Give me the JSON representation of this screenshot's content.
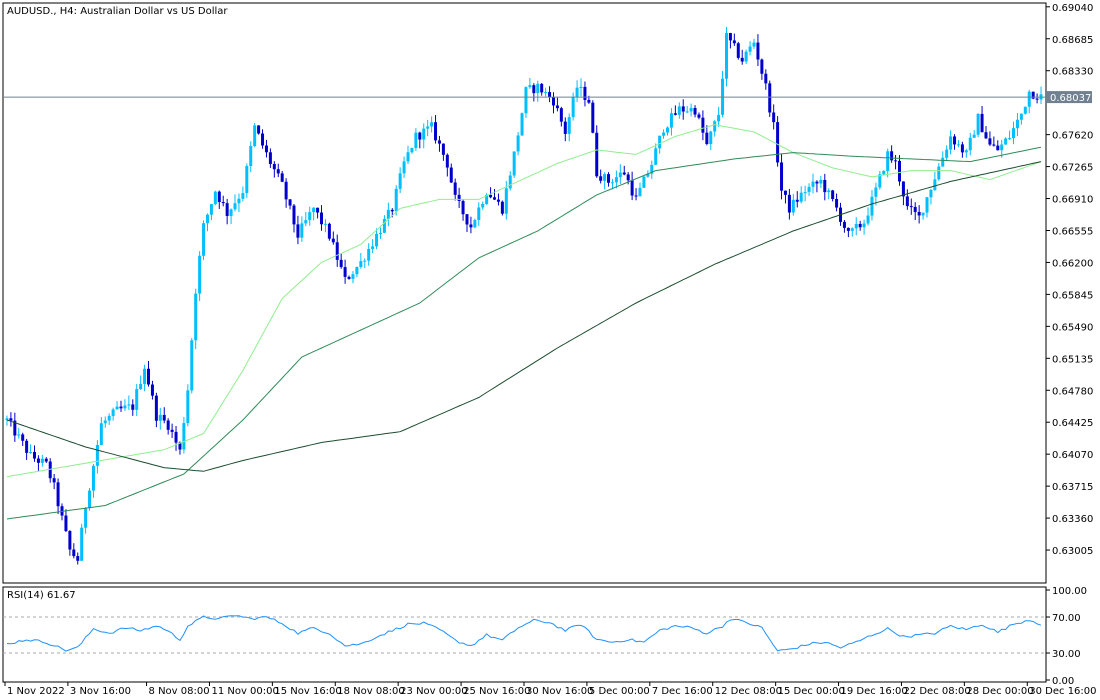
{
  "chart_data": [
    {
      "type": "candlestick",
      "title": "AUDUSD., H4:  Australian Dollar vs US Dollar",
      "current_price_label": "0.68037",
      "current_price": 0.68037,
      "y_ticks": [
        "0.69040",
        "0.68685",
        "0.68330",
        "0.67975",
        "0.67620",
        "0.67265",
        "0.66910",
        "0.66555",
        "0.66200",
        "0.65845",
        "0.65490",
        "0.65135",
        "0.64780",
        "0.64425",
        "0.64070",
        "0.63715",
        "0.63360",
        "0.63005"
      ],
      "ylim": [
        0.6265,
        0.6906
      ],
      "x_ticks": [
        {
          "label": "1 Nov 2022",
          "index": 0
        },
        {
          "label": "3 Nov 16:00",
          "index": 16
        },
        {
          "label": "8 Nov 08:00",
          "index": 36
        },
        {
          "label": "11 Nov 00:00",
          "index": 52
        },
        {
          "label": "15 Nov 16:00",
          "index": 68
        },
        {
          "label": "18 Nov 08:00",
          "index": 84
        },
        {
          "label": "23 Nov 00:00",
          "index": 100
        },
        {
          "label": "25 Nov 16:00",
          "index": 116
        },
        {
          "label": "30 Nov 16:00",
          "index": 132
        },
        {
          "label": "5 Dec 00:00",
          "index": 148
        },
        {
          "label": "7 Dec 16:00",
          "index": 164
        },
        {
          "label": "12 Dec 08:00",
          "index": 180
        },
        {
          "label": "15 Dec 00:00",
          "index": 196
        },
        {
          "label": "19 Dec 16:00",
          "index": 212
        },
        {
          "label": "22 Dec 08:00",
          "index": 228
        },
        {
          "label": "28 Dec 00:00",
          "index": 244
        },
        {
          "label": "30 Dec 16:00",
          "index": 260
        }
      ],
      "bar_count": 264,
      "close_anchors": [
        [
          0,
          0.6445
        ],
        [
          6,
          0.6405
        ],
        [
          10,
          0.6395
        ],
        [
          12,
          0.637
        ],
        [
          16,
          0.63
        ],
        [
          18,
          0.629
        ],
        [
          20,
          0.635
        ],
        [
          24,
          0.644
        ],
        [
          28,
          0.6455
        ],
        [
          32,
          0.646
        ],
        [
          35,
          0.6505
        ],
        [
          38,
          0.645
        ],
        [
          41,
          0.644
        ],
        [
          44,
          0.641
        ],
        [
          46,
          0.648
        ],
        [
          48,
          0.659
        ],
        [
          50,
          0.666
        ],
        [
          53,
          0.67
        ],
        [
          56,
          0.6675
        ],
        [
          60,
          0.67
        ],
        [
          63,
          0.677
        ],
        [
          66,
          0.674
        ],
        [
          70,
          0.6705
        ],
        [
          74,
          0.665
        ],
        [
          78,
          0.668
        ],
        [
          82,
          0.665
        ],
        [
          86,
          0.66
        ],
        [
          90,
          0.662
        ],
        [
          94,
          0.665
        ],
        [
          98,
          0.668
        ],
        [
          101,
          0.673
        ],
        [
          104,
          0.676
        ],
        [
          108,
          0.677
        ],
        [
          112,
          0.673
        ],
        [
          114,
          0.669
        ],
        [
          118,
          0.666
        ],
        [
          122,
          0.67
        ],
        [
          126,
          0.668
        ],
        [
          129,
          0.674
        ],
        [
          132,
          0.681
        ],
        [
          135,
          0.6815
        ],
        [
          139,
          0.68
        ],
        [
          142,
          0.6765
        ],
        [
          145,
          0.6815
        ],
        [
          148,
          0.68
        ],
        [
          150,
          0.672
        ],
        [
          153,
          0.671
        ],
        [
          157,
          0.672
        ],
        [
          160,
          0.669
        ],
        [
          164,
          0.673
        ],
        [
          167,
          0.677
        ],
        [
          171,
          0.679
        ],
        [
          175,
          0.679
        ],
        [
          178,
          0.675
        ],
        [
          181,
          0.6785
        ],
        [
          183,
          0.687
        ],
        [
          187,
          0.6845
        ],
        [
          190,
          0.6865
        ],
        [
          193,
          0.6815
        ],
        [
          195,
          0.677
        ],
        [
          197,
          0.67
        ],
        [
          199,
          0.668
        ],
        [
          203,
          0.67
        ],
        [
          207,
          0.671
        ],
        [
          211,
          0.668
        ],
        [
          214,
          0.665
        ],
        [
          218,
          0.6665
        ],
        [
          221,
          0.67
        ],
        [
          224,
          0.674
        ],
        [
          226,
          0.673
        ],
        [
          229,
          0.668
        ],
        [
          232,
          0.667
        ],
        [
          236,
          0.6715
        ],
        [
          240,
          0.676
        ],
        [
          244,
          0.674
        ],
        [
          247,
          0.678
        ],
        [
          250,
          0.675
        ],
        [
          252,
          0.6745
        ],
        [
          255,
          0.676
        ],
        [
          258,
          0.6785
        ],
        [
          260,
          0.681
        ],
        [
          263,
          0.6804
        ]
      ],
      "moving_averages": [
        {
          "anchors": [
            [
              0,
              0.6382
            ],
            [
              40,
              0.6412
            ],
            [
              50,
              0.643
            ],
            [
              60,
              0.65
            ],
            [
              70,
              0.658
            ],
            [
              80,
              0.662
            ],
            [
              90,
              0.664
            ],
            [
              100,
              0.668
            ],
            [
              110,
              0.669
            ],
            [
              120,
              0.669
            ],
            [
              130,
              0.671
            ],
            [
              140,
              0.673
            ],
            [
              150,
              0.6745
            ],
            [
              160,
              0.674
            ],
            [
              170,
              0.676
            ],
            [
              180,
              0.6773
            ],
            [
              190,
              0.6765
            ],
            [
              200,
              0.6742
            ],
            [
              210,
              0.6725
            ],
            [
              220,
              0.6715
            ],
            [
              230,
              0.6722
            ],
            [
              240,
              0.6722
            ],
            [
              250,
              0.6712
            ],
            [
              263,
              0.6732
            ]
          ]
        },
        {
          "anchors": [
            [
              0,
              0.6335
            ],
            [
              25,
              0.635
            ],
            [
              45,
              0.6385
            ],
            [
              60,
              0.6445
            ],
            [
              75,
              0.6515
            ],
            [
              90,
              0.6545
            ],
            [
              105,
              0.6575
            ],
            [
              120,
              0.6625
            ],
            [
              135,
              0.6655
            ],
            [
              150,
              0.6695
            ],
            [
              165,
              0.6722
            ],
            [
              185,
              0.6735
            ],
            [
              200,
              0.6742
            ],
            [
              215,
              0.6738
            ],
            [
              230,
              0.6735
            ],
            [
              245,
              0.6732
            ],
            [
              263,
              0.6748
            ]
          ]
        },
        {
          "anchors": [
            [
              0,
              0.6445
            ],
            [
              20,
              0.6415
            ],
            [
              40,
              0.6392
            ],
            [
              50,
              0.6388
            ],
            [
              60,
              0.64
            ],
            [
              80,
              0.642
            ],
            [
              100,
              0.6432
            ],
            [
              120,
              0.647
            ],
            [
              140,
              0.6525
            ],
            [
              160,
              0.6575
            ],
            [
              180,
              0.6618
            ],
            [
              200,
              0.6655
            ],
            [
              220,
              0.6685
            ],
            [
              240,
              0.671
            ],
            [
              263,
              0.6732
            ]
          ]
        }
      ]
    },
    {
      "type": "line",
      "label": "RSI(14) 61.67",
      "y_ticks": [
        "100.00",
        "70.00",
        "30.00",
        "0.00"
      ],
      "ylim": [
        0,
        100
      ],
      "levels": [
        70,
        30
      ],
      "anchors": [
        [
          0,
          40
        ],
        [
          5,
          45
        ],
        [
          10,
          42
        ],
        [
          15,
          33
        ],
        [
          18,
          36
        ],
        [
          22,
          57
        ],
        [
          26,
          52
        ],
        [
          30,
          58
        ],
        [
          34,
          55
        ],
        [
          38,
          60
        ],
        [
          40,
          57
        ],
        [
          44,
          45
        ],
        [
          46,
          60
        ],
        [
          50,
          70
        ],
        [
          54,
          68
        ],
        [
          58,
          72
        ],
        [
          62,
          68
        ],
        [
          66,
          70
        ],
        [
          70,
          63
        ],
        [
          74,
          52
        ],
        [
          78,
          58
        ],
        [
          82,
          52
        ],
        [
          86,
          38
        ],
        [
          90,
          40
        ],
        [
          94,
          48
        ],
        [
          98,
          55
        ],
        [
          102,
          62
        ],
        [
          106,
          63
        ],
        [
          110,
          56
        ],
        [
          114,
          44
        ],
        [
          118,
          38
        ],
        [
          122,
          50
        ],
        [
          126,
          44
        ],
        [
          130,
          58
        ],
        [
          134,
          66
        ],
        [
          138,
          64
        ],
        [
          142,
          55
        ],
        [
          146,
          62
        ],
        [
          150,
          45
        ],
        [
          154,
          42
        ],
        [
          158,
          45
        ],
        [
          162,
          42
        ],
        [
          166,
          55
        ],
        [
          170,
          60
        ],
        [
          174,
          58
        ],
        [
          178,
          52
        ],
        [
          182,
          60
        ],
        [
          184,
          68
        ],
        [
          188,
          64
        ],
        [
          192,
          58
        ],
        [
          196,
          32
        ],
        [
          200,
          35
        ],
        [
          204,
          40
        ],
        [
          208,
          42
        ],
        [
          212,
          36
        ],
        [
          216,
          42
        ],
        [
          220,
          50
        ],
        [
          224,
          57
        ],
        [
          228,
          48
        ],
        [
          232,
          50
        ],
        [
          236,
          52
        ],
        [
          240,
          60
        ],
        [
          244,
          56
        ],
        [
          248,
          62
        ],
        [
          252,
          53
        ],
        [
          256,
          62
        ],
        [
          260,
          67
        ],
        [
          263,
          62
        ]
      ]
    }
  ],
  "colors": {
    "bull_body": "#00bfff",
    "bear_body": "#0000cd",
    "ma_fast": "#90ee90",
    "ma_mid": "#2e8b57",
    "ma_slow": "#1b4d2e",
    "rsi_line": "#1e90ff",
    "price_tag_bg": "#708090"
  }
}
